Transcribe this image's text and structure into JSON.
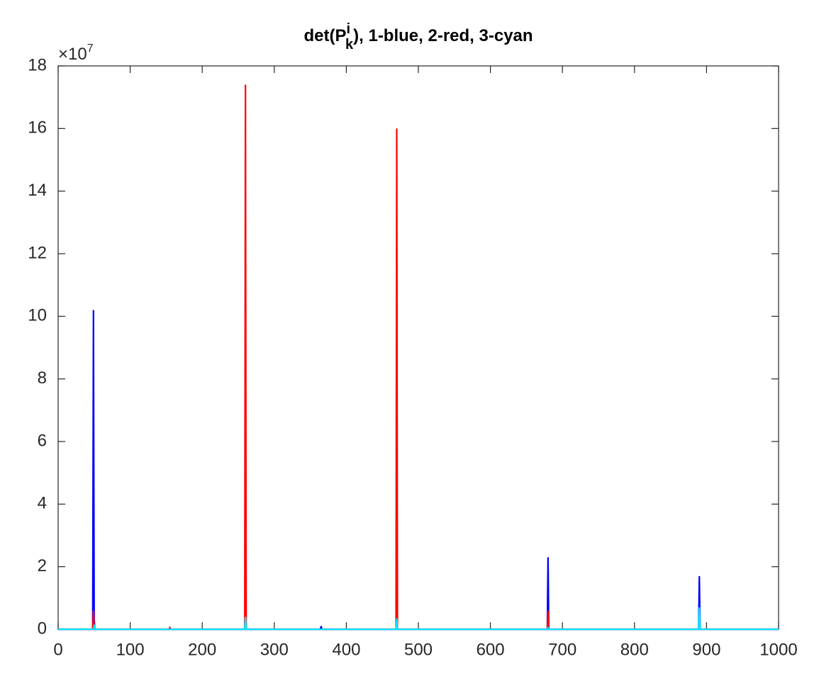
{
  "chart_data": {
    "type": "line",
    "title_parts": [
      "det(P",
      "i",
      "k",
      "), 1-blue, 2-red, 3-cyan"
    ],
    "y_exponent": [
      "×10",
      "7"
    ],
    "x": [
      0,
      48,
      49,
      50,
      51,
      154,
      155,
      156,
      259,
      260,
      261,
      364,
      365,
      366,
      469,
      470,
      471,
      679,
      680,
      681,
      889,
      890,
      891,
      1000
    ],
    "series": [
      {
        "name": "1",
        "color": "#0000ff",
        "values": [
          0,
          0,
          10.2,
          0.3,
          0,
          0,
          0,
          0,
          0,
          0.3,
          0,
          0,
          0.1,
          0,
          0,
          0.3,
          0,
          0,
          2.3,
          0,
          0,
          1.7,
          0,
          0
        ]
      },
      {
        "name": "2",
        "color": "#ff0000",
        "values": [
          0,
          0,
          0.6,
          0,
          0,
          0,
          0.05,
          0,
          0,
          17.4,
          0,
          0,
          0,
          0,
          0,
          16.0,
          0,
          0,
          0.6,
          0,
          0,
          0,
          0,
          0
        ]
      },
      {
        "name": "3",
        "color": "#00e5ff",
        "values": [
          0,
          0,
          0,
          0.15,
          0,
          0,
          0,
          0,
          0,
          0.4,
          0,
          0,
          0,
          0,
          0,
          0.35,
          0,
          0,
          0.05,
          0,
          0,
          0.7,
          0,
          0
        ]
      }
    ],
    "xlim": [
      0,
      1000
    ],
    "xticks": [
      0,
      100,
      200,
      300,
      400,
      500,
      600,
      700,
      800,
      900,
      1000
    ],
    "ylim": [
      0,
      18
    ],
    "yticks": [
      0,
      2,
      4,
      6,
      8,
      10,
      12,
      14,
      16,
      18
    ]
  }
}
